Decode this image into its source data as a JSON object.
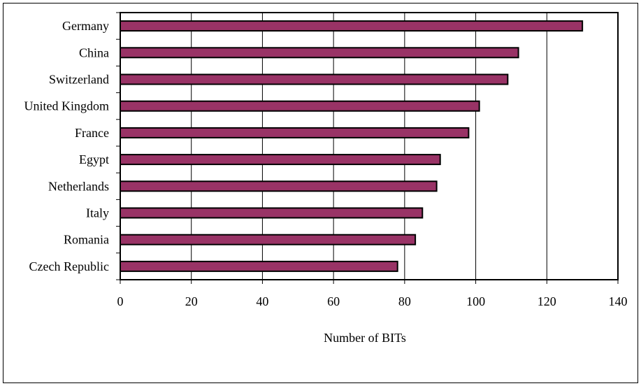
{
  "chart_data": {
    "type": "bar",
    "orientation": "horizontal",
    "categories": [
      "Germany",
      "China",
      "Switzerland",
      "United Kingdom",
      "France",
      "Egypt",
      "Netherlands",
      "Italy",
      "Romania",
      "Czech Republic"
    ],
    "values": [
      130,
      112,
      109,
      101,
      98,
      90,
      89,
      85,
      83,
      78
    ],
    "xlabel": "Number of BITs",
    "ylabel": "",
    "xlim": [
      0,
      140
    ],
    "xticks": [
      "0",
      "20",
      "40",
      "60",
      "80",
      "100",
      "120",
      "140"
    ],
    "grid": "vertical",
    "legend": "none",
    "bar_color": "#993366",
    "bar_edge_color": "#000000"
  }
}
